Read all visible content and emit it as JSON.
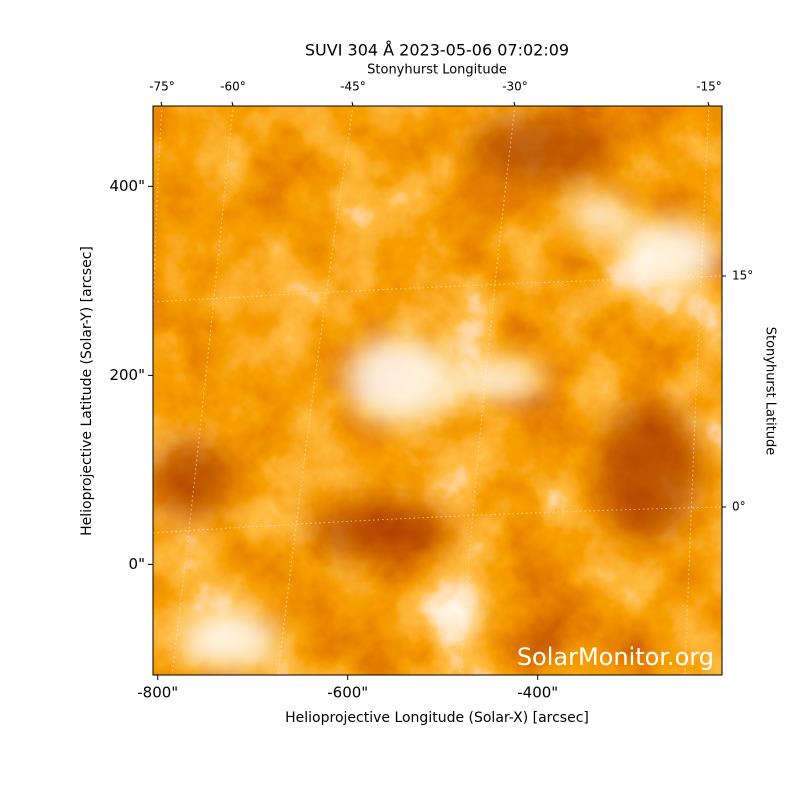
{
  "chart_data": {
    "type": "image",
    "title": "SUVI 304 Å 2023-05-06 07:02:09",
    "xlabel": "Helioprojective Longitude (Solar-X) [arcsec]",
    "ylabel": "Helioprojective Latitude (Solar-Y) [arcsec]",
    "x2label": "Stonyhurst Longitude",
    "y2label": "Stonyhurst Latitude",
    "watermark": "SolarMonitor.org",
    "xlim": [
      -805,
      -206
    ],
    "ylim": [
      -117,
      485
    ],
    "xticks": [
      {
        "value": -800,
        "label": "-800\""
      },
      {
        "value": -600,
        "label": "-600\""
      },
      {
        "value": -400,
        "label": "-400\""
      }
    ],
    "yticks": [
      {
        "value": 0,
        "label": "0\""
      },
      {
        "value": 200,
        "label": "200\""
      },
      {
        "value": 400,
        "label": "400\""
      }
    ],
    "x2ticks": [
      {
        "value": -75,
        "label": "-75°"
      },
      {
        "value": -60,
        "label": "-60°"
      },
      {
        "value": -45,
        "label": "-45°"
      },
      {
        "value": -30,
        "label": "-30°"
      },
      {
        "value": -15,
        "label": "-15°"
      }
    ],
    "y2ticks": [
      {
        "value": 0,
        "label": "0°"
      },
      {
        "value": 15,
        "label": "15°"
      }
    ]
  }
}
